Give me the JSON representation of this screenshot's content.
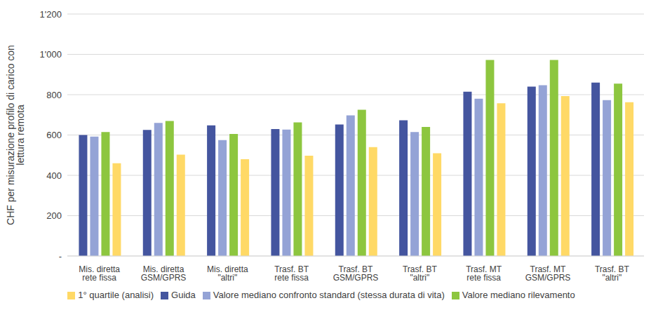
{
  "chart_data": {
    "type": "bar",
    "y_label": "CHF per misurazione profilo di carico con lettura remota",
    "categories": [
      "Mis. diretta rete fissa",
      "Mis. diretta GSM/GPRS",
      "Mis. diretta \"altri\"",
      "Trasf. BT rete fissa",
      "Trasf. BT GSM/GPRS",
      "Trasf. BT \"altri\"",
      "Trasf. MT rete fissa",
      "Trasf. MT GSM/GPRS",
      "Trasf. BT \"altri\""
    ],
    "series": [
      {
        "name": "Guida",
        "color": "#44559f",
        "values": [
          600,
          625,
          648,
          630,
          652,
          673,
          815,
          840,
          860
        ]
      },
      {
        "name": "Valore mediano confronto standard (stessa durata di vita)",
        "color": "#94a3d6",
        "values": [
          592,
          660,
          575,
          627,
          697,
          615,
          780,
          847,
          773
        ]
      },
      {
        "name": "Valore mediano rilevamento",
        "color": "#8dc63f",
        "values": [
          615,
          670,
          605,
          663,
          725,
          640,
          972,
          972,
          855
        ]
      },
      {
        "name": "1° quartile (analisi)",
        "color": "#ffd966",
        "values": [
          460,
          503,
          480,
          497,
          540,
          510,
          757,
          793,
          763
        ]
      }
    ],
    "ylim": [
      0,
      1200
    ],
    "yticks": [
      {
        "value": 0,
        "label": "-"
      },
      200,
      400,
      600,
      800,
      {
        "value": 1000,
        "label": "1'000"
      },
      {
        "value": 1200,
        "label": "1'200"
      }
    ],
    "grid": true,
    "legend": "bottom"
  }
}
